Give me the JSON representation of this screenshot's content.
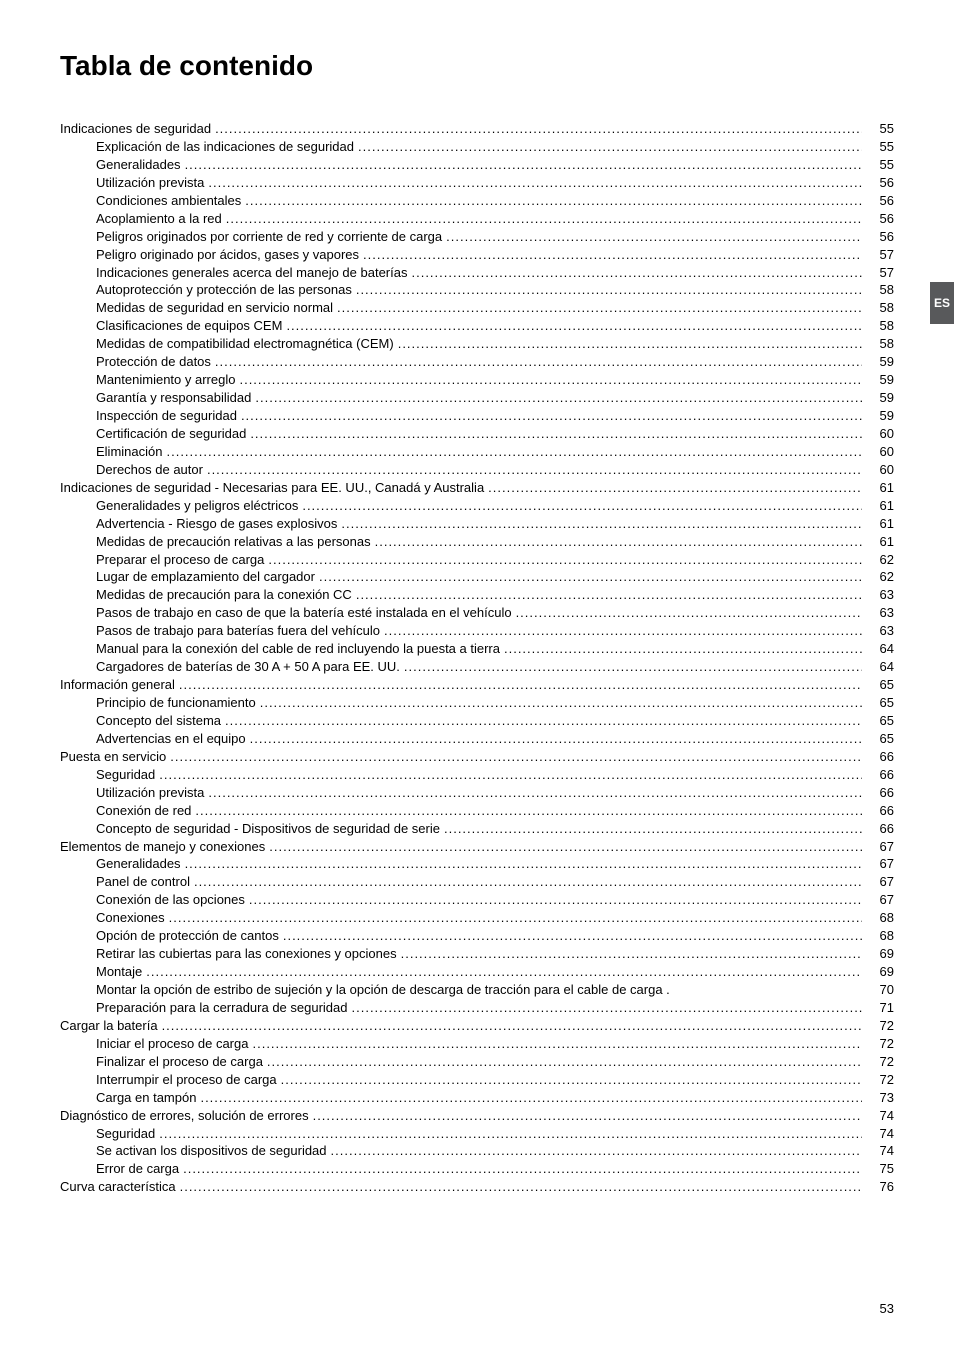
{
  "title": "Tabla de contenido",
  "side_tab": "ES",
  "page_number": "53",
  "toc": [
    {
      "level": 0,
      "label": "Indicaciones de seguridad",
      "page": "55"
    },
    {
      "level": 1,
      "label": "Explicación de las indicaciones de seguridad",
      "page": "55"
    },
    {
      "level": 1,
      "label": "Generalidades",
      "page": "55"
    },
    {
      "level": 1,
      "label": "Utilización prevista",
      "page": "56"
    },
    {
      "level": 1,
      "label": "Condiciones ambientales",
      "page": "56"
    },
    {
      "level": 1,
      "label": "Acoplamiento a la red",
      "page": "56"
    },
    {
      "level": 1,
      "label": "Peligros originados por corriente de red y corriente de carga",
      "page": "56"
    },
    {
      "level": 1,
      "label": "Peligro originado por ácidos, gases y vapores",
      "page": "57"
    },
    {
      "level": 1,
      "label": "Indicaciones generales acerca del manejo de baterías",
      "page": "57"
    },
    {
      "level": 1,
      "label": "Autoprotección y protección de las personas",
      "page": "58"
    },
    {
      "level": 1,
      "label": "Medidas de seguridad en servicio normal",
      "page": "58"
    },
    {
      "level": 1,
      "label": "Clasificaciones de equipos CEM",
      "page": "58"
    },
    {
      "level": 1,
      "label": "Medidas de compatibilidad electromagnética (CEM)",
      "page": "58"
    },
    {
      "level": 1,
      "label": "Protección de datos",
      "page": "59"
    },
    {
      "level": 1,
      "label": "Mantenimiento y arreglo",
      "page": "59"
    },
    {
      "level": 1,
      "label": "Garantía y responsabilidad",
      "page": "59"
    },
    {
      "level": 1,
      "label": "Inspección de seguridad",
      "page": "59"
    },
    {
      "level": 1,
      "label": "Certificación de seguridad",
      "page": "60"
    },
    {
      "level": 1,
      "label": "Eliminación",
      "page": "60"
    },
    {
      "level": 1,
      "label": "Derechos de autor",
      "page": "60"
    },
    {
      "level": 0,
      "label": "Indicaciones de seguridad - Necesarias para EE. UU., Canadá y Australia",
      "page": "61"
    },
    {
      "level": 1,
      "label": "Generalidades y peligros eléctricos",
      "page": "61"
    },
    {
      "level": 1,
      "label": "Advertencia - Riesgo de gases explosivos",
      "page": "61"
    },
    {
      "level": 1,
      "label": "Medidas de precaución relativas a las personas",
      "page": "61"
    },
    {
      "level": 1,
      "label": "Preparar el proceso de carga",
      "page": "62"
    },
    {
      "level": 1,
      "label": "Lugar de emplazamiento del cargador",
      "page": "62"
    },
    {
      "level": 1,
      "label": "Medidas de precaución para la conexión CC",
      "page": "63"
    },
    {
      "level": 1,
      "label": "Pasos de trabajo en caso de que la batería esté instalada en el vehículo",
      "page": "63"
    },
    {
      "level": 1,
      "label": "Pasos de trabajo para baterías fuera del vehículo",
      "page": "63"
    },
    {
      "level": 1,
      "label": "Manual para la conexión del cable de red incluyendo la puesta a tierra",
      "page": "64"
    },
    {
      "level": 1,
      "label": "Cargadores de baterías de 30 A + 50 A para EE. UU.",
      "page": "64"
    },
    {
      "level": 0,
      "label": "Información general",
      "page": "65"
    },
    {
      "level": 1,
      "label": "Principio de funcionamiento",
      "page": "65"
    },
    {
      "level": 1,
      "label": "Concepto del sistema",
      "page": "65"
    },
    {
      "level": 1,
      "label": "Advertencias en el equipo",
      "page": "65"
    },
    {
      "level": 0,
      "label": "Puesta en servicio",
      "page": "66"
    },
    {
      "level": 1,
      "label": "Seguridad",
      "page": "66"
    },
    {
      "level": 1,
      "label": "Utilización prevista",
      "page": "66"
    },
    {
      "level": 1,
      "label": "Conexión de red",
      "page": "66"
    },
    {
      "level": 1,
      "label": "Concepto de seguridad - Dispositivos de seguridad de serie",
      "page": "66"
    },
    {
      "level": 0,
      "label": "Elementos de manejo y conexiones",
      "page": "67"
    },
    {
      "level": 1,
      "label": "Generalidades",
      "page": "67"
    },
    {
      "level": 1,
      "label": "Panel de control",
      "page": "67"
    },
    {
      "level": 1,
      "label": "Conexión de las opciones",
      "page": "67"
    },
    {
      "level": 1,
      "label": "Conexiones",
      "page": "68"
    },
    {
      "level": 1,
      "label": "Opción de protección de cantos",
      "page": "68"
    },
    {
      "level": 1,
      "label": "Retirar las cubiertas para las conexiones y opciones",
      "page": "69"
    },
    {
      "level": 1,
      "label": "Montaje",
      "page": "69"
    },
    {
      "level": 1,
      "label": "Montar la opción de estribo de sujeción y la opción de descarga de tracción para el cable de carga .",
      "page": "70",
      "nodots": true
    },
    {
      "level": 1,
      "label": "Preparación para la cerradura de seguridad",
      "page": "71"
    },
    {
      "level": 0,
      "label": "Cargar la batería",
      "page": "72"
    },
    {
      "level": 1,
      "label": "Iniciar el proceso de carga",
      "page": "72"
    },
    {
      "level": 1,
      "label": "Finalizar el proceso de carga",
      "page": "72"
    },
    {
      "level": 1,
      "label": "Interrumpir el proceso de carga",
      "page": "72"
    },
    {
      "level": 1,
      "label": "Carga en tampón",
      "page": "73"
    },
    {
      "level": 0,
      "label": "Diagnóstico de errores, solución de errores",
      "page": "74"
    },
    {
      "level": 1,
      "label": "Seguridad",
      "page": "74"
    },
    {
      "level": 1,
      "label": "Se activan los dispositivos de seguridad",
      "page": "74"
    },
    {
      "level": 1,
      "label": "Error de carga",
      "page": "75"
    },
    {
      "level": 0,
      "label": "Curva característica",
      "page": "76"
    }
  ]
}
